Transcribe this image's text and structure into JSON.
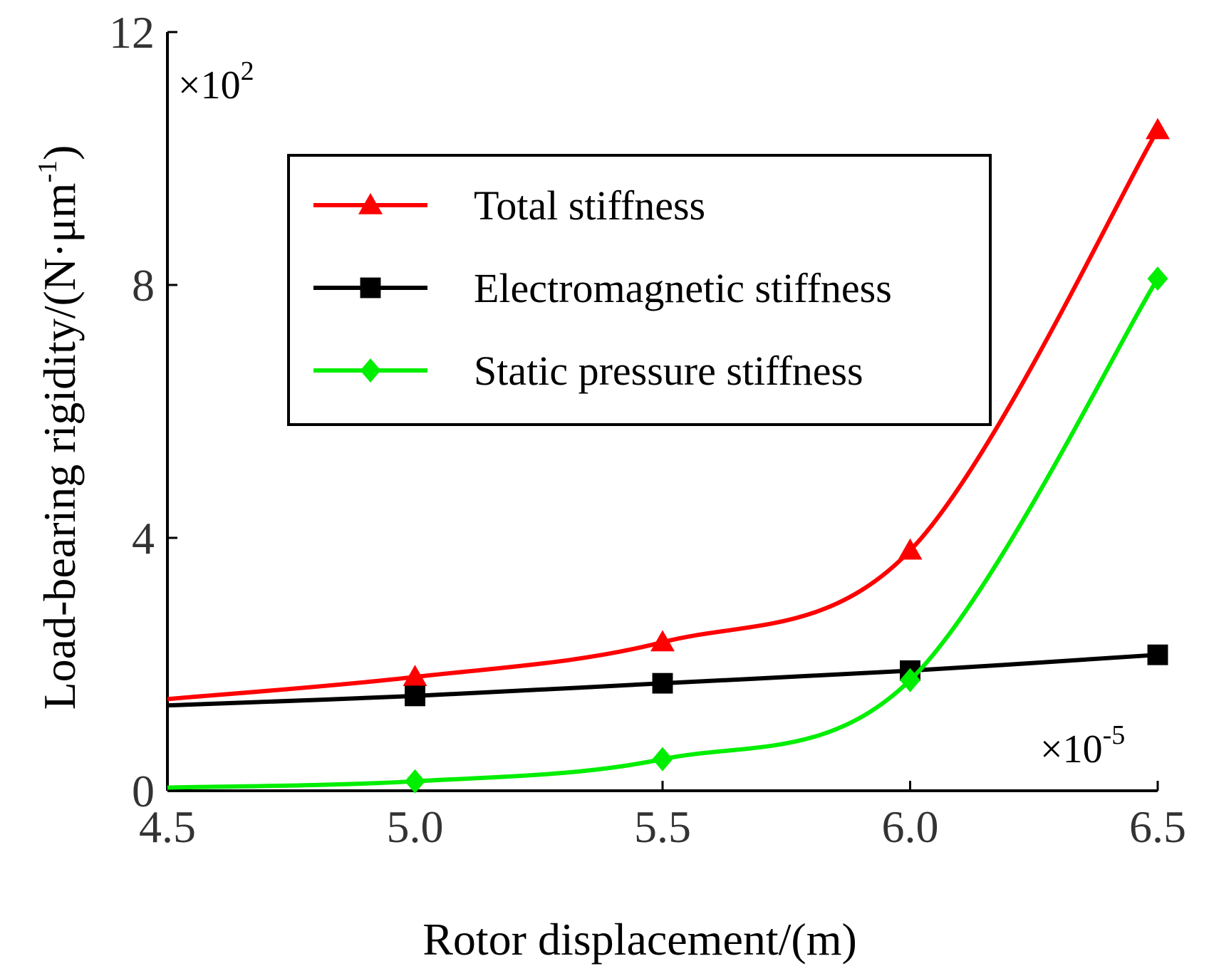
{
  "chart_data": {
    "type": "line",
    "title": "",
    "xlabel": "Rotor displacement/(m)",
    "ylabel": "Load-bearing rigidity/(N·μm",
    "ylabel_sup": "-1",
    "ylabel_close": ")",
    "x_multiplier_base": "×10",
    "x_multiplier_exp": "-5",
    "y_multiplier_base": "×10",
    "y_multiplier_exp": "2",
    "xlim": [
      4.5,
      6.5
    ],
    "ylim": [
      0,
      12
    ],
    "xticks": [
      "4.5",
      "5.0",
      "5.5",
      "6.0",
      "6.5"
    ],
    "yticks": [
      "0",
      "4",
      "8",
      "12"
    ],
    "x": [
      5.0,
      5.5,
      6.0,
      6.5
    ],
    "legend_position": "upper-middle",
    "series": [
      {
        "name": "Total stiffness",
        "color": "#ff0000",
        "marker": "triangle",
        "values": [
          1.8,
          2.35,
          3.8,
          10.45
        ],
        "curve_start": 1.45
      },
      {
        "name": "Electromagnetic stiffness",
        "color": "#000000",
        "marker": "square",
        "values": [
          1.5,
          1.7,
          1.9,
          2.15
        ],
        "curve_start": 1.35
      },
      {
        "name": "Static pressure stiffness",
        "color": "#00ee00",
        "marker": "diamond",
        "values": [
          0.15,
          0.5,
          1.75,
          8.1
        ],
        "curve_start": 0.05
      }
    ]
  }
}
